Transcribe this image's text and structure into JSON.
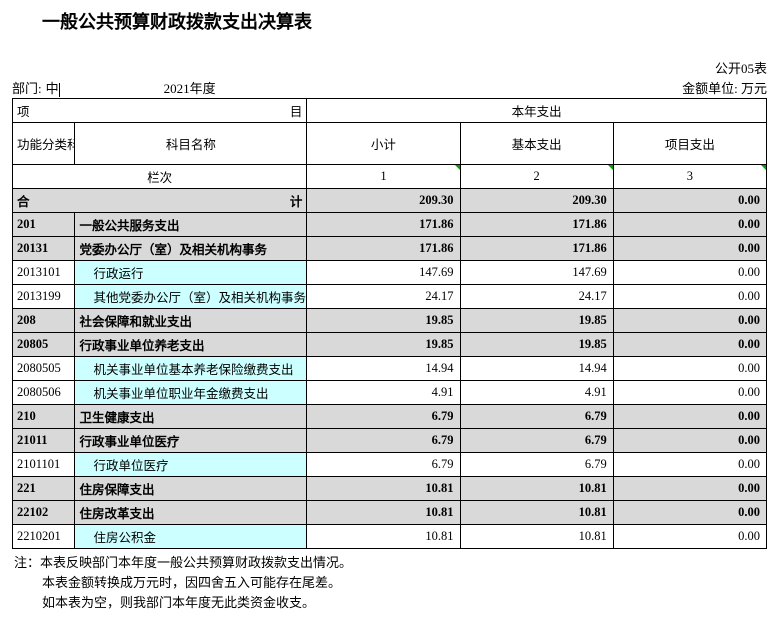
{
  "title": "一般公共预算财政拨款支出决算表",
  "meta": {
    "form_no": "公开05表",
    "dept_label": "部门:",
    "dept_value": "中",
    "year": "2021年度",
    "unit": "金额单位: 万元"
  },
  "header": {
    "proj": "项",
    "mu": "目",
    "this_year": "本年支出",
    "func_code": "功能分类科目编码",
    "subj_name": "科目名称",
    "subtotal": "小计",
    "basic": "基本支出",
    "project": "项目支出",
    "col_label": "栏次",
    "c1": "1",
    "c2": "2",
    "c3": "3",
    "total_label_l": "合",
    "total_label_r": "计"
  },
  "totals": {
    "subtotal": "209.30",
    "basic": "209.30",
    "project": "0.00"
  },
  "rows": [
    {
      "code": "201",
      "name": "一般公共服务支出",
      "v1": "171.86",
      "v2": "171.86",
      "v3": "0.00",
      "kind": "shade"
    },
    {
      "code": "20131",
      "name": "党委办公厅（室）及相关机构事务",
      "v1": "171.86",
      "v2": "171.86",
      "v3": "0.00",
      "kind": "shade"
    },
    {
      "code": "2013101",
      "name": "行政运行",
      "v1": "147.69",
      "v2": "147.69",
      "v3": "0.00",
      "kind": "cyan"
    },
    {
      "code": "2013199",
      "name": "其他党委办公厅（室）及相关机构事务支出",
      "v1": "24.17",
      "v2": "24.17",
      "v3": "0.00",
      "kind": "cyan"
    },
    {
      "code": "208",
      "name": "社会保障和就业支出",
      "v1": "19.85",
      "v2": "19.85",
      "v3": "0.00",
      "kind": "shade"
    },
    {
      "code": "20805",
      "name": "行政事业单位养老支出",
      "v1": "19.85",
      "v2": "19.85",
      "v3": "0.00",
      "kind": "shade"
    },
    {
      "code": "2080505",
      "name": "机关事业单位基本养老保险缴费支出",
      "v1": "14.94",
      "v2": "14.94",
      "v3": "0.00",
      "kind": "cyan"
    },
    {
      "code": "2080506",
      "name": "机关事业单位职业年金缴费支出",
      "v1": "4.91",
      "v2": "4.91",
      "v3": "0.00",
      "kind": "cyan"
    },
    {
      "code": "210",
      "name": "卫生健康支出",
      "v1": "6.79",
      "v2": "6.79",
      "v3": "0.00",
      "kind": "shade"
    },
    {
      "code": "21011",
      "name": "行政事业单位医疗",
      "v1": "6.79",
      "v2": "6.79",
      "v3": "0.00",
      "kind": "shade"
    },
    {
      "code": "2101101",
      "name": "行政单位医疗",
      "v1": "6.79",
      "v2": "6.79",
      "v3": "0.00",
      "kind": "cyan"
    },
    {
      "code": "221",
      "name": "住房保障支出",
      "v1": "10.81",
      "v2": "10.81",
      "v3": "0.00",
      "kind": "shade"
    },
    {
      "code": "22102",
      "name": "住房改革支出",
      "v1": "10.81",
      "v2": "10.81",
      "v3": "0.00",
      "kind": "shade"
    },
    {
      "code": "2210201",
      "name": "住房公积金",
      "v1": "10.81",
      "v2": "10.81",
      "v3": "0.00",
      "kind": "cyan"
    }
  ],
  "notes": {
    "n1": "注：本表反映部门本年度一般公共预算财政拨款支出情况。",
    "n2": "本表金额转换成万元时，因四舍五入可能存在尾差。",
    "n3": "如本表为空，则我部门本年度无此类资金收支。"
  },
  "style": {
    "shade_bg": "#d9d9d9",
    "cyan_bg": "#ccffff",
    "border_color": "#000000",
    "title_fontsize": 18,
    "body_fontsize": 13
  }
}
